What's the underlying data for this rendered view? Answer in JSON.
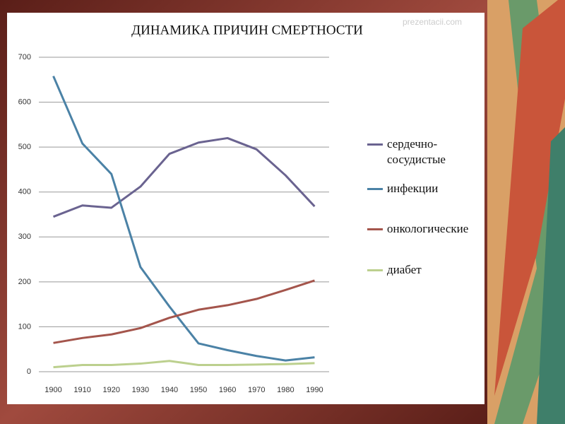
{
  "watermark": "prezentacii.com",
  "chart_data": {
    "type": "line",
    "title": "ДИНАМИКА ПРИЧИН СМЕРТНОСТИ",
    "categories": [
      "1900",
      "1910",
      "1920",
      "1930",
      "1940",
      "1950",
      "1960",
      "1970",
      "1980",
      "1990"
    ],
    "series": [
      {
        "name": "сердечно-сосудистые",
        "color": "#6a6390",
        "values": [
          345,
          370,
          365,
          412,
          485,
          510,
          520,
          495,
          437,
          368
        ]
      },
      {
        "name": "инфекции",
        "color": "#4b82a6",
        "values": [
          658,
          508,
          440,
          233,
          145,
          63,
          48,
          35,
          25,
          32
        ]
      },
      {
        "name": "онкологические",
        "color": "#a4554c",
        "values": [
          64,
          75,
          83,
          97,
          120,
          138,
          148,
          162,
          182,
          203
        ]
      },
      {
        "name": "диабет",
        "color": "#bcd08e",
        "values": [
          10,
          15,
          15,
          18,
          24,
          15,
          15,
          16,
          17,
          19
        ]
      }
    ],
    "ylim": [
      0,
      700
    ],
    "yticks": [
      0,
      100,
      200,
      300,
      400,
      500,
      600,
      700
    ],
    "grid": true,
    "legend": "right"
  }
}
